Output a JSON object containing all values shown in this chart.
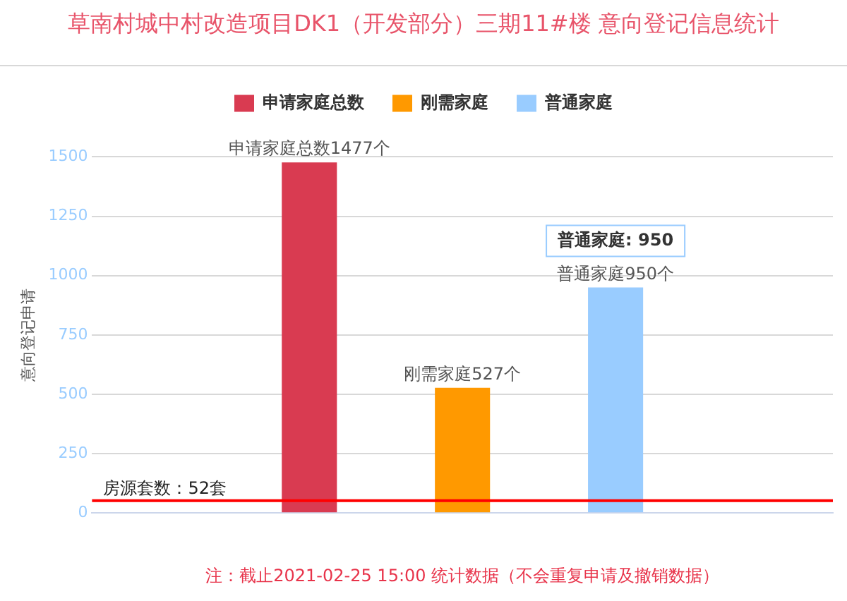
{
  "chart_data": {
    "type": "bar",
    "title": "草南村城中村改造项目DK1（开发部分）三期11#楼 意向登记信息统计",
    "ylabel": "意向登记申请",
    "categories": [
      null
    ],
    "series": [
      {
        "name": "申请家庭总数",
        "color": "#d93b51",
        "values": [
          1477
        ],
        "value_labels": [
          "申请家庭总数1477个"
        ]
      },
      {
        "name": "刚需家庭",
        "color": "#ff9900",
        "values": [
          527
        ],
        "value_labels": [
          "刚需家庭527个"
        ]
      },
      {
        "name": "普通家庭",
        "color": "#99ccff",
        "values": [
          950
        ],
        "value_labels": [
          "普通家庭950个"
        ]
      }
    ],
    "ylim": [
      0,
      1500
    ],
    "yticks": [
      0,
      250,
      500,
      750,
      1000,
      1250,
      1500
    ],
    "grid": "y",
    "legend": "top",
    "ref_lines": [
      {
        "axis": "y",
        "value": 52,
        "label": "房源套数：52套",
        "color": "#ff0000"
      }
    ],
    "annotations": [
      "注：截止2021-02-25 15:00 统计数据（不会重复申请及撤销数据）",
      {
        "text": "普通家庭: 950",
        "y": 950
      }
    ]
  }
}
